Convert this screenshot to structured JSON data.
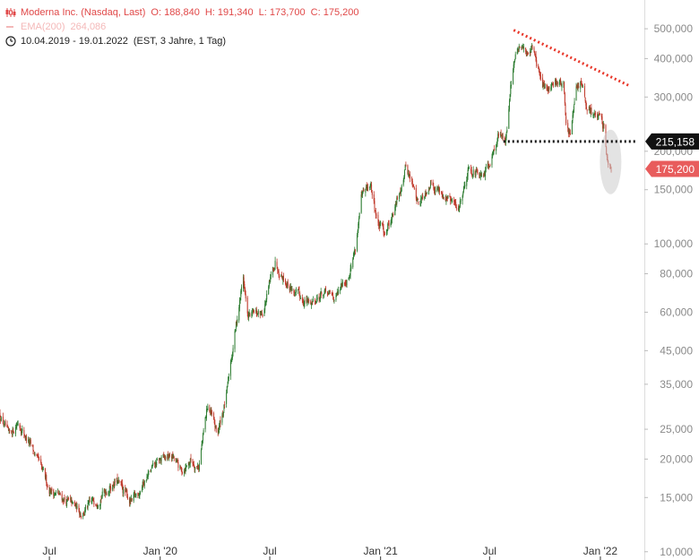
{
  "legend": {
    "instrument": "Moderna Inc. (Nasdaq, Last)",
    "open": "O: 188,840",
    "high": "H: 191,340",
    "low": "L: 173,700",
    "close": "C: 175,200",
    "ema_label": "EMA(200)",
    "ema_value": "264,086",
    "date_range": "10.04.2019 - 19.01.2022",
    "date_info": "(EST, 3 Jahre, 1 Tag)"
  },
  "colors": {
    "candle_up": "#2e7d32",
    "candle_down": "#c0392b",
    "accent": "#e04848",
    "trendline": "#e8372a",
    "support": "#111111",
    "badge_current": "#e85c5c",
    "badge_level": "#111111"
  },
  "chart_data": {
    "type": "candlestick",
    "scale": "log",
    "ylim": [
      9400,
      620000
    ],
    "xlim": [
      "2019-04-10",
      "2022-03-15"
    ],
    "y_ticks": [
      {
        "v": 500000,
        "label": "500,000"
      },
      {
        "v": 400000,
        "label": "400,000"
      },
      {
        "v": 300000,
        "label": "300,000"
      },
      {
        "v": 200000,
        "label": "200,000"
      },
      {
        "v": 150000,
        "label": "150,000"
      },
      {
        "v": 100000,
        "label": "100,000"
      },
      {
        "v": 80000,
        "label": "80,000"
      },
      {
        "v": 60000,
        "label": "60,000"
      },
      {
        "v": 45000,
        "label": "45,000"
      },
      {
        "v": 35000,
        "label": "35,000"
      },
      {
        "v": 25000,
        "label": "25,000"
      },
      {
        "v": 20000,
        "label": "20,000"
      },
      {
        "v": 15000,
        "label": "15,000"
      },
      {
        "v": 10000,
        "label": "10,000"
      }
    ],
    "x_ticks": [
      {
        "date": "2019-07-01",
        "label": "Jul"
      },
      {
        "date": "2020-01-01",
        "label": "Jan '20"
      },
      {
        "date": "2020-07-01",
        "label": "Jul"
      },
      {
        "date": "2021-01-01",
        "label": "Jan '21"
      },
      {
        "date": "2021-07-01",
        "label": "Jul"
      },
      {
        "date": "2022-01-01",
        "label": "Jan '22"
      }
    ],
    "price_path": [
      [
        "2019-04-10",
        28000
      ],
      [
        "2019-04-25",
        23500
      ],
      [
        "2019-05-10",
        26500
      ],
      [
        "2019-06-05",
        21000
      ],
      [
        "2019-07-01",
        16000
      ],
      [
        "2019-08-01",
        14500
      ],
      [
        "2019-08-25",
        13400
      ],
      [
        "2019-09-20",
        15000
      ],
      [
        "2019-10-20",
        17000
      ],
      [
        "2019-11-15",
        14400
      ],
      [
        "2019-12-10",
        17500
      ],
      [
        "2019-12-30",
        19700
      ],
      [
        "2020-01-20",
        20500
      ],
      [
        "2020-02-05",
        18200
      ],
      [
        "2020-02-20",
        19800
      ],
      [
        "2020-03-05",
        19000
      ],
      [
        "2020-03-20",
        30000
      ],
      [
        "2020-04-05",
        24000
      ],
      [
        "2020-04-20",
        32000
      ],
      [
        "2020-05-01",
        47000
      ],
      [
        "2020-05-18",
        78000
      ],
      [
        "2020-05-25",
        58000
      ],
      [
        "2020-06-20",
        60000
      ],
      [
        "2020-07-10",
        88000
      ],
      [
        "2020-07-27",
        76000
      ],
      [
        "2020-08-15",
        68000
      ],
      [
        "2020-09-05",
        64000
      ],
      [
        "2020-09-25",
        69000
      ],
      [
        "2020-10-20",
        67000
      ],
      [
        "2020-11-09",
        80000
      ],
      [
        "2020-11-20",
        97000
      ],
      [
        "2020-11-30",
        140000
      ],
      [
        "2020-12-15",
        155000
      ],
      [
        "2020-12-28",
        115000
      ],
      [
        "2021-01-08",
        110000
      ],
      [
        "2021-01-25",
        130000
      ],
      [
        "2021-02-12",
        180000
      ],
      [
        "2021-03-05",
        135000
      ],
      [
        "2021-03-25",
        160000
      ],
      [
        "2021-04-15",
        145000
      ],
      [
        "2021-05-10",
        130000
      ],
      [
        "2021-05-28",
        180000
      ],
      [
        "2021-06-20",
        160000
      ],
      [
        "2021-07-15",
        225000
      ],
      [
        "2021-07-28",
        220000
      ],
      [
        "2021-08-05",
        330000
      ],
      [
        "2021-08-12",
        400000
      ],
      [
        "2021-08-20",
        430000
      ],
      [
        "2021-09-01",
        420000
      ],
      [
        "2021-09-10",
        440000
      ],
      [
        "2021-09-20",
        370000
      ],
      [
        "2021-09-27",
        320000
      ],
      [
        "2021-10-05",
        320000
      ],
      [
        "2021-10-20",
        340000
      ],
      [
        "2021-11-01",
        330000
      ],
      [
        "2021-11-05",
        240000
      ],
      [
        "2021-11-12",
        225000
      ],
      [
        "2021-11-23",
        320000
      ],
      [
        "2021-11-30",
        340000
      ],
      [
        "2021-12-10",
        265000
      ],
      [
        "2021-12-22",
        270000
      ],
      [
        "2021-12-31",
        250000
      ],
      [
        "2022-01-07",
        240000
      ],
      [
        "2022-01-12",
        195000
      ],
      [
        "2022-01-18",
        178000
      ],
      [
        "2022-01-19",
        175200
      ]
    ],
    "trendline": {
      "points": [
        [
          "2021-08-10",
          495000
        ],
        [
          "2022-02-20",
          325000
        ]
      ]
    },
    "support_line": {
      "value": 215158,
      "from": "2021-07-24",
      "to": "2022-02-28"
    },
    "highlight": {
      "date": "2022-01-18",
      "y_low": 145000,
      "y_high": 235000
    },
    "last_price": {
      "value": 175200,
      "label": "175,200"
    },
    "level_badge": {
      "value": 215158,
      "label": "215,158"
    }
  }
}
